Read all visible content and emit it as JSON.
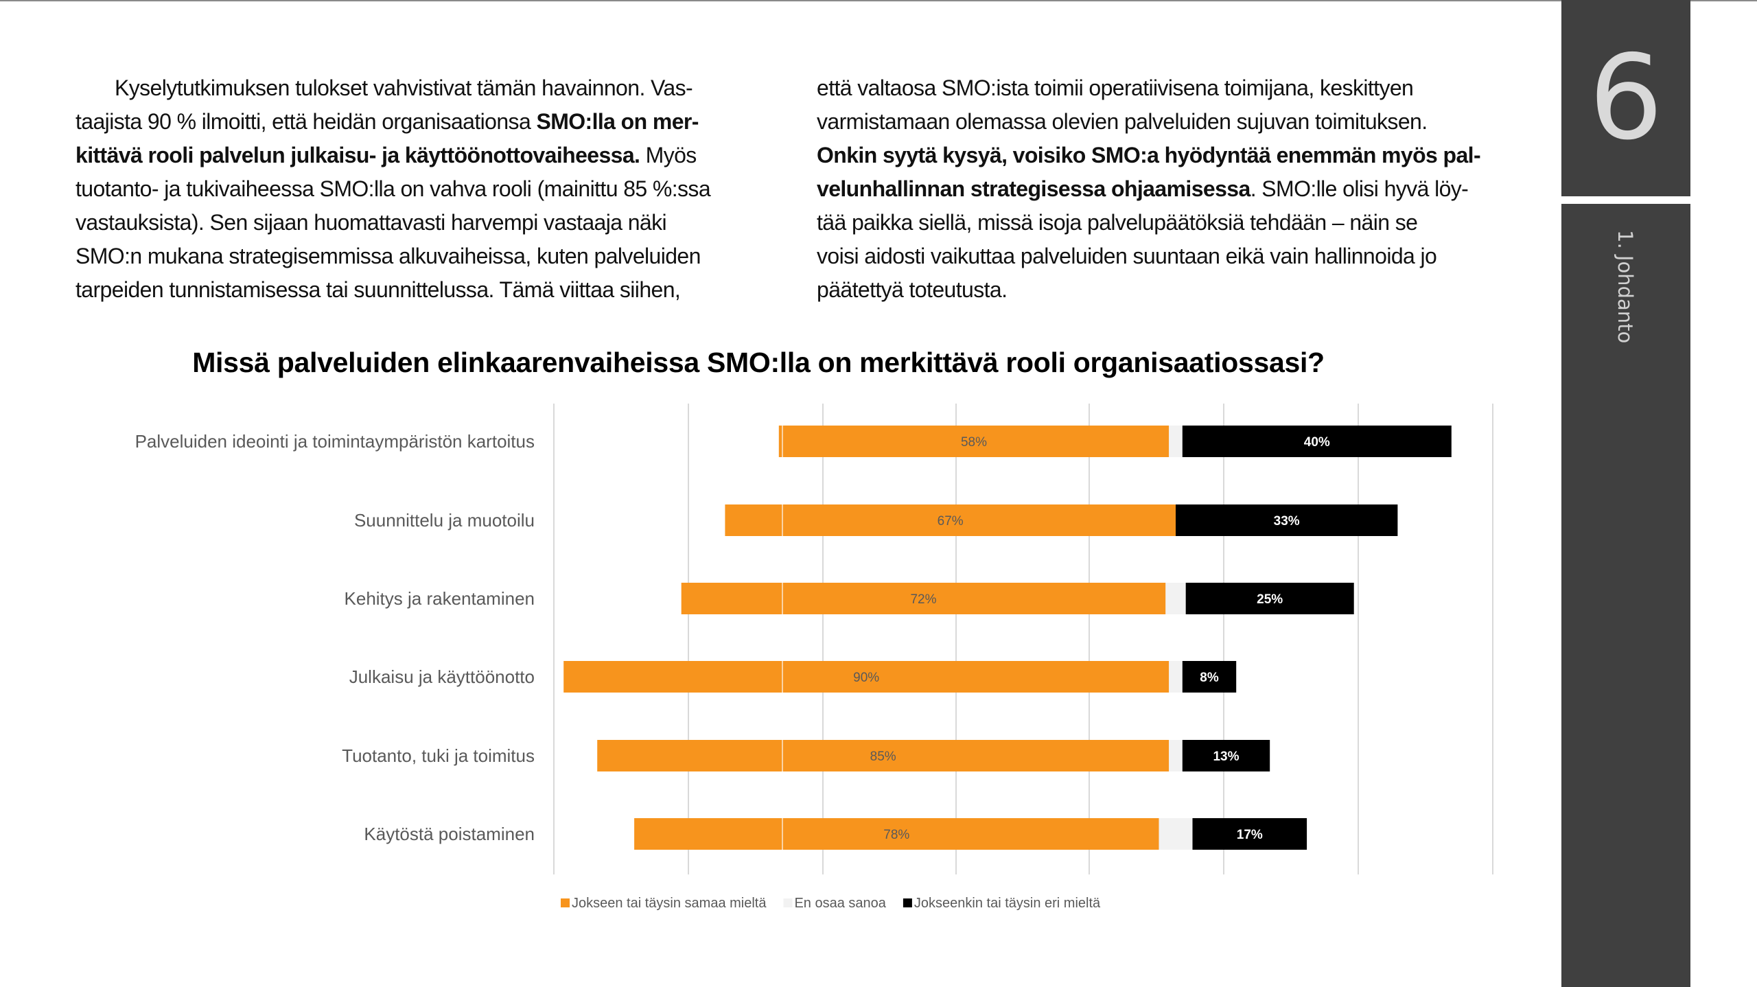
{
  "body_text": {
    "left_column": [
      [
        {
          "t": "Kyselytutkimuksen tulokset vahvistivat tämän havainnon. Vas-",
          "b": false
        }
      ],
      [
        {
          "t": "taajista 90 % ilmoitti, että heidän organisaationsa ",
          "b": false
        },
        {
          "t": "SMO:lla on mer-",
          "b": true
        }
      ],
      [
        {
          "t": "kittävä rooli palvelun julkaisu- ja käyttöönottovaiheessa.",
          "b": true
        },
        {
          "t": " Myös",
          "b": false
        }
      ],
      [
        {
          "t": "tuotanto- ja tukivaiheessa SMO:lla on vahva rooli (mainittu 85 %:ssa",
          "b": false
        }
      ],
      [
        {
          "t": "vastauksista). Sen sijaan huomattavasti harvempi vastaaja näki",
          "b": false
        }
      ],
      [
        {
          "t": "SMO:n mukana strategisemmissa alkuvaiheissa, kuten palveluiden",
          "b": false
        }
      ],
      [
        {
          "t": "tarpeiden tunnistamisessa tai suunnittelussa. Tämä viittaa siihen,",
          "b": false
        }
      ]
    ],
    "right_column": [
      [
        {
          "t": "että valtaosa SMO:ista toimii operatiivisena toimijana, keskittyen",
          "b": false
        }
      ],
      [
        {
          "t": "varmistamaan olemassa olevien palveluiden sujuvan toimituksen.",
          "b": false
        }
      ],
      [
        {
          "t": "Onkin syytä kysyä, voisiko SMO:a hyödyntää enemmän myös pal-",
          "b": true
        }
      ],
      [
        {
          "t": "velunhallinnan strategisessa ohjaamisessa",
          "b": true
        },
        {
          "t": ". SMO:lle olisi hyvä löy-",
          "b": false
        }
      ],
      [
        {
          "t": "tää paikka siellä, missä isoja palvelupäätöksiä tehdään – näin se",
          "b": false
        }
      ],
      [
        {
          "t": "voisi aidosti vaikuttaa palveluiden suuntaan eikä vain hallinnoida jo",
          "b": false
        }
      ],
      [
        {
          "t": "päätettyä toteutusta.",
          "b": false
        }
      ]
    ]
  },
  "sidebar": {
    "chapter_number": "6",
    "chapter_name": "1. Johdanto",
    "color": "#404040"
  },
  "chart_data": {
    "type": "bar",
    "orientation": "horizontal-diverging-stacked",
    "title": "Missä palveluiden elinkaarenvaiheissa SMO:lla on merkittävä rooli organisaatiossasi?",
    "categories": [
      "Palveluiden ideointi ja toimintaympäristön kartoitus",
      "Suunnittelu ja muotoilu",
      "Kehitys ja rakentaminen",
      "Julkaisu ja käyttöönotto",
      "Tuotanto, tuki ja toimitus",
      "Käytöstä poistaminen"
    ],
    "series": [
      {
        "name": "Jokseen tai täysin samaa mieltä",
        "values": [
          58,
          67,
          72,
          90,
          85,
          78
        ],
        "labels": [
          "58%",
          "67%",
          "72%",
          "90%",
          "85%",
          "78%"
        ],
        "color": "#F7941D"
      },
      {
        "name": "En osaa sanoa",
        "values": [
          2,
          0,
          3,
          2,
          2,
          5
        ],
        "color": "#F2F2F2"
      },
      {
        "name": "Jokseenkin tai täysin eri mieltä",
        "values": [
          40,
          33,
          25,
          8,
          13,
          17
        ],
        "labels": [
          "40%",
          "33%",
          "25%",
          "8%",
          "13%",
          "17%"
        ],
        "color": "#000000"
      }
    ],
    "unit": "%",
    "grid": true,
    "legend": "bottom"
  }
}
